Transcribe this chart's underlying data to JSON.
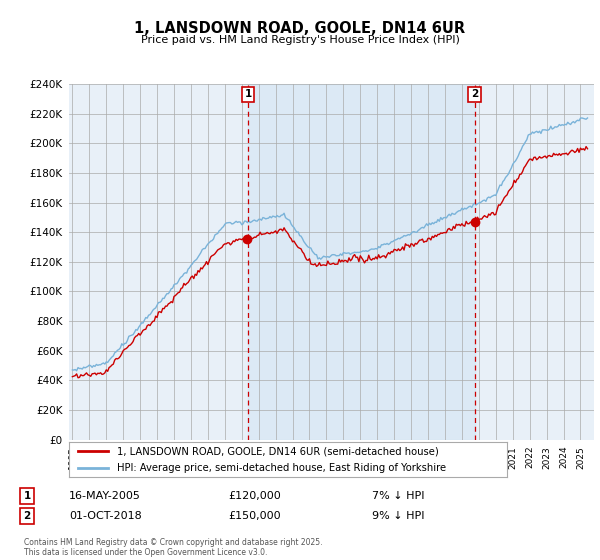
{
  "title": "1, LANSDOWN ROAD, GOOLE, DN14 6UR",
  "subtitle": "Price paid vs. HM Land Registry's House Price Index (HPI)",
  "ylim": [
    0,
    240000
  ],
  "yticks": [
    0,
    20000,
    40000,
    60000,
    80000,
    100000,
    120000,
    140000,
    160000,
    180000,
    200000,
    220000,
    240000
  ],
  "hpi_color": "#7ab3d9",
  "price_color": "#cc0000",
  "vline_color": "#cc0000",
  "shading_color": "#ddeeff",
  "background_color": "#e8f0f8",
  "annotation1": {
    "label": "1",
    "date": "16-MAY-2005",
    "price": "£120,000",
    "note": "7% ↓ HPI"
  },
  "annotation2": {
    "label": "2",
    "date": "01-OCT-2018",
    "price": "£150,000",
    "note": "9% ↓ HPI"
  },
  "legend_line1": "1, LANSDOWN ROAD, GOOLE, DN14 6UR (semi-detached house)",
  "legend_line2": "HPI: Average price, semi-detached house, East Riding of Yorkshire",
  "footer": "Contains HM Land Registry data © Crown copyright and database right 2025.\nThis data is licensed under the Open Government Licence v3.0.",
  "sale1_year": 2005.37,
  "sale2_year": 2018.75,
  "sale1_price": 120000,
  "sale2_price": 150000
}
